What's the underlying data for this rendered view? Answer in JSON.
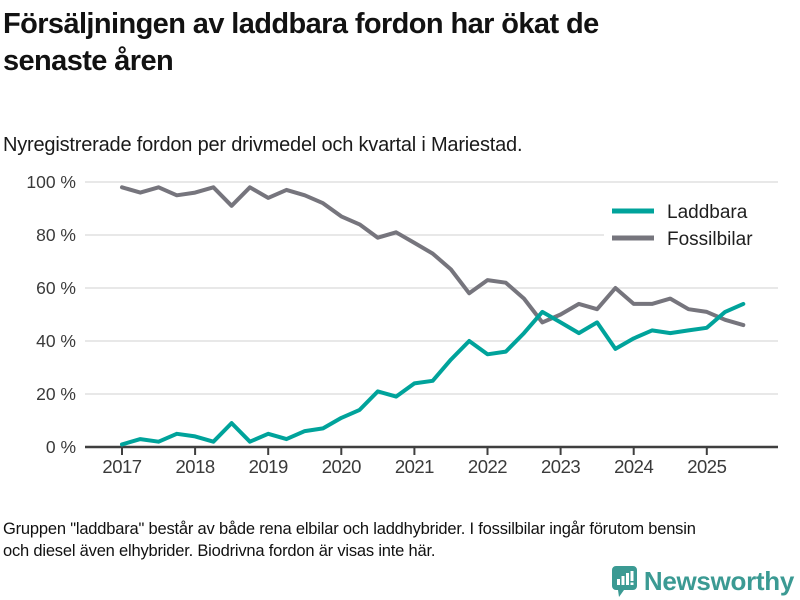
{
  "header": {
    "title_line1": "Försäljningen av laddbara fordon har ökat de",
    "title_line2": "senaste åren",
    "subtitle": "Nyregistrerade fordon per drivmedel och kvartal i Mariestad."
  },
  "chart_data": {
    "type": "line",
    "x_unit": "quarter",
    "x_start": "2017 Q1",
    "x_end": "2025 Q3",
    "x_tick_labels": [
      "2017",
      "2018",
      "2019",
      "2020",
      "2021",
      "2022",
      "2023",
      "2024",
      "2025"
    ],
    "y_tick_labels": [
      "0 %",
      "20 %",
      "40 %",
      "60 %",
      "80 %",
      "100 %"
    ],
    "y_tick_values": [
      0,
      20,
      40,
      60,
      80,
      100
    ],
    "ylim": [
      0,
      100
    ],
    "grid": "horizontal",
    "legend_position": "top-right",
    "series": [
      {
        "name": "Laddbara",
        "color": "#00a39b",
        "values": [
          1,
          3,
          2,
          5,
          4,
          2,
          9,
          2,
          5,
          3,
          6,
          7,
          11,
          14,
          21,
          19,
          24,
          25,
          33,
          40,
          35,
          36,
          43,
          51,
          47,
          43,
          47,
          37,
          41,
          44,
          43,
          44,
          45,
          51,
          54
        ]
      },
      {
        "name": "Fossilbilar",
        "color": "#76757d",
        "values": [
          98,
          96,
          98,
          95,
          96,
          98,
          91,
          98,
          94,
          97,
          95,
          92,
          87,
          84,
          79,
          81,
          77,
          73,
          67,
          58,
          63,
          62,
          56,
          47,
          50,
          54,
          52,
          60,
          54,
          54,
          56,
          52,
          51,
          48,
          46
        ]
      }
    ]
  },
  "footer": {
    "note_line1": "Gruppen \"laddbara\" består av både rena elbilar och laddhybrider. I fossilbilar ingår förutom bensin",
    "note_line2": "och diesel även elhybrider. Biodrivna fordon är visas inte här."
  },
  "logo": {
    "text": "Newsworthy",
    "color": "#3b9a93",
    "icon": "newsworthy-bar-chart-bubble-icon"
  }
}
